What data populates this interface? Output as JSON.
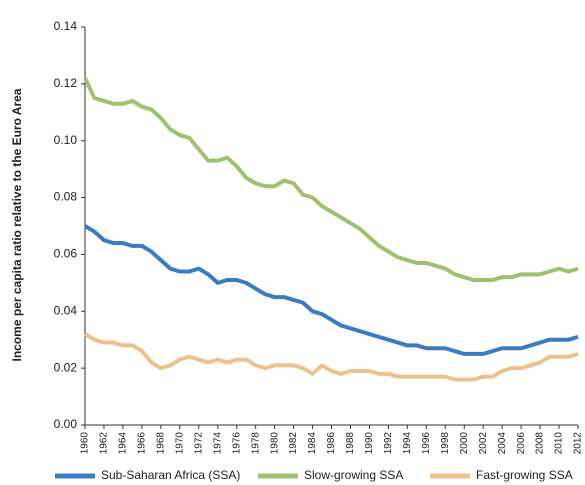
{
  "chart_data": {
    "type": "line",
    "ylabel": "Income per capita ratio relative to the Euro Area",
    "x": [
      1960,
      1961,
      1962,
      1963,
      1964,
      1965,
      1966,
      1967,
      1968,
      1969,
      1970,
      1971,
      1972,
      1973,
      1974,
      1975,
      1976,
      1977,
      1978,
      1979,
      1980,
      1981,
      1982,
      1983,
      1984,
      1985,
      1986,
      1987,
      1988,
      1989,
      1990,
      1991,
      1992,
      1993,
      1994,
      1995,
      1996,
      1997,
      1998,
      1999,
      2000,
      2001,
      2002,
      2003,
      2004,
      2005,
      2006,
      2007,
      2008,
      2009,
      2010,
      2011,
      2012
    ],
    "series": [
      {
        "name": "Sub-Saharan Africa (SSA)",
        "color": "#3a7cc4",
        "values": [
          0.07,
          0.068,
          0.065,
          0.064,
          0.064,
          0.063,
          0.063,
          0.061,
          0.058,
          0.055,
          0.054,
          0.054,
          0.055,
          0.053,
          0.05,
          0.051,
          0.051,
          0.05,
          0.048,
          0.046,
          0.045,
          0.045,
          0.044,
          0.043,
          0.04,
          0.039,
          0.037,
          0.035,
          0.034,
          0.033,
          0.032,
          0.031,
          0.03,
          0.029,
          0.028,
          0.028,
          0.027,
          0.027,
          0.027,
          0.026,
          0.025,
          0.025,
          0.025,
          0.026,
          0.027,
          0.027,
          0.027,
          0.028,
          0.029,
          0.03,
          0.03,
          0.03,
          0.031
        ]
      },
      {
        "name": "Slow-growing SSA",
        "color": "#9ec26b",
        "values": [
          0.122,
          0.115,
          0.114,
          0.113,
          0.113,
          0.114,
          0.112,
          0.111,
          0.108,
          0.104,
          0.102,
          0.101,
          0.097,
          0.093,
          0.093,
          0.094,
          0.091,
          0.087,
          0.085,
          0.084,
          0.084,
          0.086,
          0.085,
          0.081,
          0.08,
          0.077,
          0.075,
          0.073,
          0.071,
          0.069,
          0.066,
          0.063,
          0.061,
          0.059,
          0.058,
          0.057,
          0.057,
          0.056,
          0.055,
          0.053,
          0.052,
          0.051,
          0.051,
          0.051,
          0.052,
          0.052,
          0.053,
          0.053,
          0.053,
          0.054,
          0.055,
          0.054,
          0.055
        ]
      },
      {
        "name": "Fast-growing SSA",
        "color": "#f0c08c",
        "values": [
          0.032,
          0.03,
          0.029,
          0.029,
          0.028,
          0.028,
          0.026,
          0.022,
          0.02,
          0.021,
          0.023,
          0.024,
          0.023,
          0.022,
          0.023,
          0.022,
          0.023,
          0.023,
          0.021,
          0.02,
          0.021,
          0.021,
          0.021,
          0.02,
          0.018,
          0.021,
          0.019,
          0.018,
          0.019,
          0.019,
          0.019,
          0.018,
          0.018,
          0.017,
          0.017,
          0.017,
          0.017,
          0.017,
          0.017,
          0.016,
          0.016,
          0.016,
          0.017,
          0.017,
          0.019,
          0.02,
          0.02,
          0.021,
          0.022,
          0.024,
          0.024,
          0.024,
          0.025
        ]
      }
    ],
    "xlim": [
      1960,
      2012
    ],
    "xticks": [
      1960,
      1962,
      1964,
      1966,
      1968,
      1970,
      1972,
      1974,
      1976,
      1978,
      1980,
      1982,
      1984,
      1986,
      1988,
      1990,
      1992,
      1994,
      1996,
      1998,
      2000,
      2002,
      2004,
      2006,
      2008,
      2010,
      2012
    ],
    "ylim": [
      0,
      0.14
    ],
    "yticks": [
      {
        "value": 0,
        "label": "0.00"
      },
      0.02,
      0.04,
      0.06,
      0.08,
      {
        "value": 0.1,
        "label": "0.10"
      },
      0.12,
      0.14
    ],
    "grid": false,
    "legend": "bottom"
  }
}
